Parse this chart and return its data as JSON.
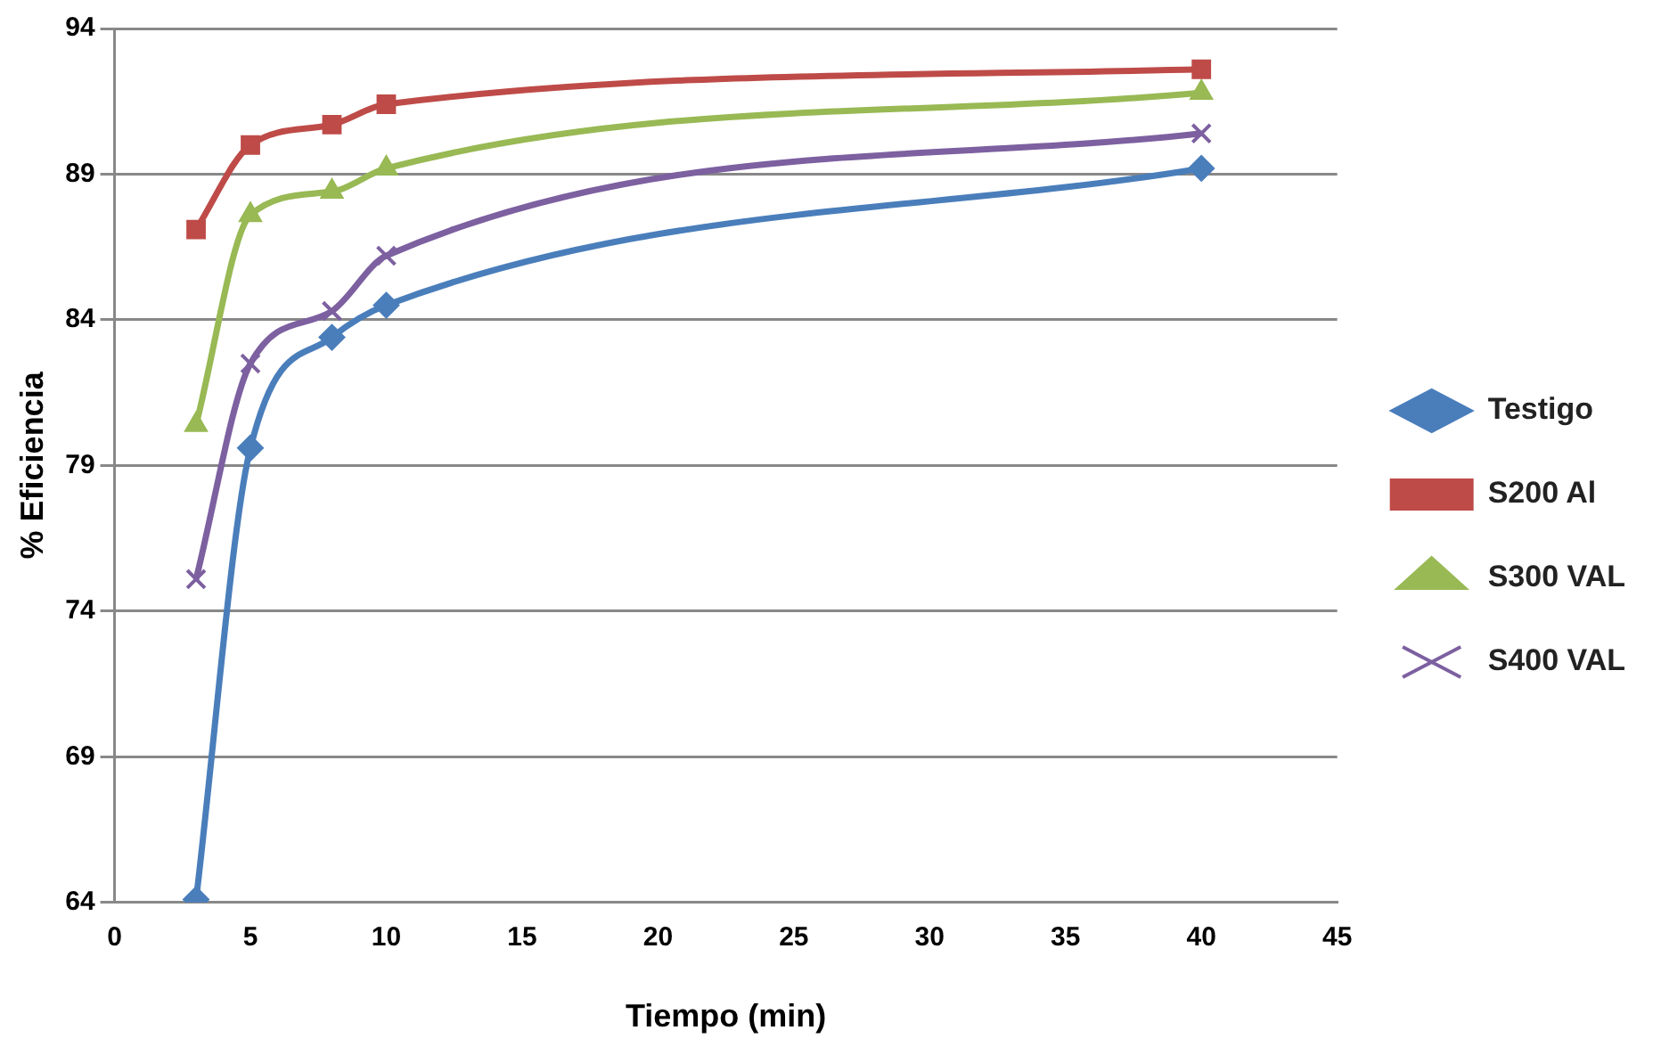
{
  "chart_data": {
    "type": "line",
    "xlabel": "Tiempo (min)",
    "ylabel": "% Eficiencia",
    "xlim": [
      0,
      45
    ],
    "xticks": [
      0,
      5,
      10,
      15,
      20,
      25,
      30,
      35,
      40,
      45
    ],
    "ylim": [
      64,
      94
    ],
    "yticks": [
      64,
      69,
      74,
      79,
      84,
      89,
      94
    ],
    "grid": "y",
    "legend": "right",
    "line_style": "solid",
    "series": [
      {
        "name": "Testigo",
        "color": "#4a7ebb",
        "marker": "diamond",
        "x": [
          3,
          5,
          8,
          10,
          40
        ],
        "values": [
          64.1,
          79.6,
          83.4,
          84.5,
          89.2
        ]
      },
      {
        "name": "S200 Al",
        "color": "#be4b48",
        "marker": "square",
        "x": [
          3,
          5,
          8,
          10,
          40
        ],
        "values": [
          87.1,
          90.0,
          90.7,
          91.4,
          92.6
        ]
      },
      {
        "name": "S300 VAL",
        "color": "#98b954",
        "marker": "triangle",
        "x": [
          3,
          5,
          8,
          10,
          40
        ],
        "values": [
          80.4,
          87.6,
          88.4,
          89.2,
          91.8
        ]
      },
      {
        "name": "S400 VAL",
        "color": "#7d60a0",
        "marker": "cross",
        "x": [
          3,
          5,
          8,
          10,
          40
        ],
        "values": [
          75.1,
          82.5,
          84.3,
          86.2,
          90.4
        ]
      }
    ]
  }
}
